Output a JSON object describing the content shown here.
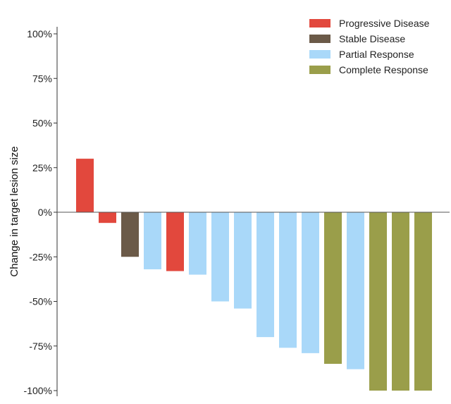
{
  "chart_data": {
    "type": "bar",
    "title": "",
    "xlabel": "",
    "ylabel": "Change in target lesion size",
    "ylim": [
      -100,
      100
    ],
    "yticks": [
      100,
      75,
      50,
      25,
      0,
      -25,
      -50,
      -75,
      -100
    ],
    "ytick_labels": [
      "100%",
      "75%",
      "50%",
      "25%",
      "0%",
      "-25%",
      "-50%",
      "-75%",
      "-100%"
    ],
    "grid": false,
    "legend_position": "top-right",
    "legend": [
      {
        "key": "PD",
        "label": "Progressive Disease",
        "color": "#e2483d"
      },
      {
        "key": "SD",
        "label": "Stable Disease",
        "color": "#6b5a48"
      },
      {
        "key": "PR",
        "label": "Partial Response",
        "color": "#a9d8f9"
      },
      {
        "key": "CR",
        "label": "Complete Response",
        "color": "#9a9e4a"
      }
    ],
    "bars": [
      {
        "value": 30,
        "response": "PD"
      },
      {
        "value": -6,
        "response": "PD"
      },
      {
        "value": -25,
        "response": "SD"
      },
      {
        "value": -32,
        "response": "PR"
      },
      {
        "value": -33,
        "response": "PD"
      },
      {
        "value": -35,
        "response": "PR"
      },
      {
        "value": -50,
        "response": "PR"
      },
      {
        "value": -54,
        "response": "PR"
      },
      {
        "value": -70,
        "response": "PR"
      },
      {
        "value": -76,
        "response": "PR"
      },
      {
        "value": -79,
        "response": "PR"
      },
      {
        "value": -85,
        "response": "CR"
      },
      {
        "value": -88,
        "response": "PR"
      },
      {
        "value": -100,
        "response": "CR"
      },
      {
        "value": -100,
        "response": "CR"
      },
      {
        "value": -100,
        "response": "CR"
      }
    ]
  }
}
